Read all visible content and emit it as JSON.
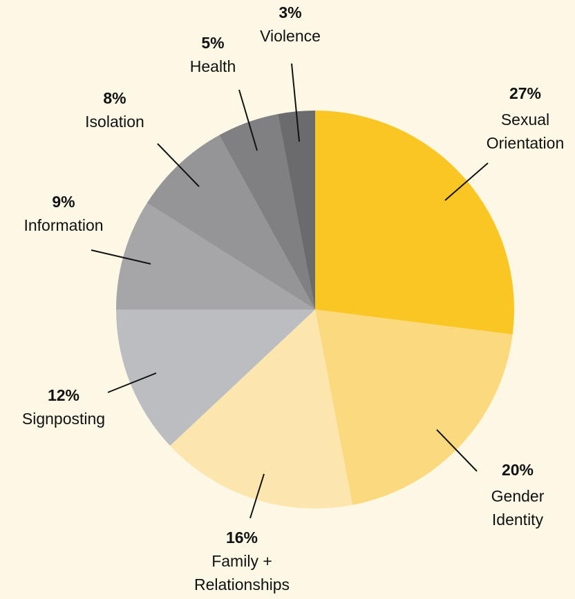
{
  "chart_data": {
    "type": "pie",
    "categories": [
      "Sexual\nOrientation",
      "Gender\nIdentity",
      "Family +\nRelationships",
      "Signposting",
      "Information",
      "Isolation",
      "Health",
      "Violence"
    ],
    "values": [
      27,
      20,
      16,
      12,
      9,
      8,
      5,
      3
    ],
    "value_labels": [
      "27%",
      "20%",
      "16%",
      "12%",
      "9%",
      "8%",
      "5%",
      "3%"
    ],
    "colors": [
      "#f9c623",
      "#fbd97f",
      "#fde6ae",
      "#bcbdc1",
      "#a6a6a8",
      "#959597",
      "#808082",
      "#6b6b6d"
    ]
  }
}
